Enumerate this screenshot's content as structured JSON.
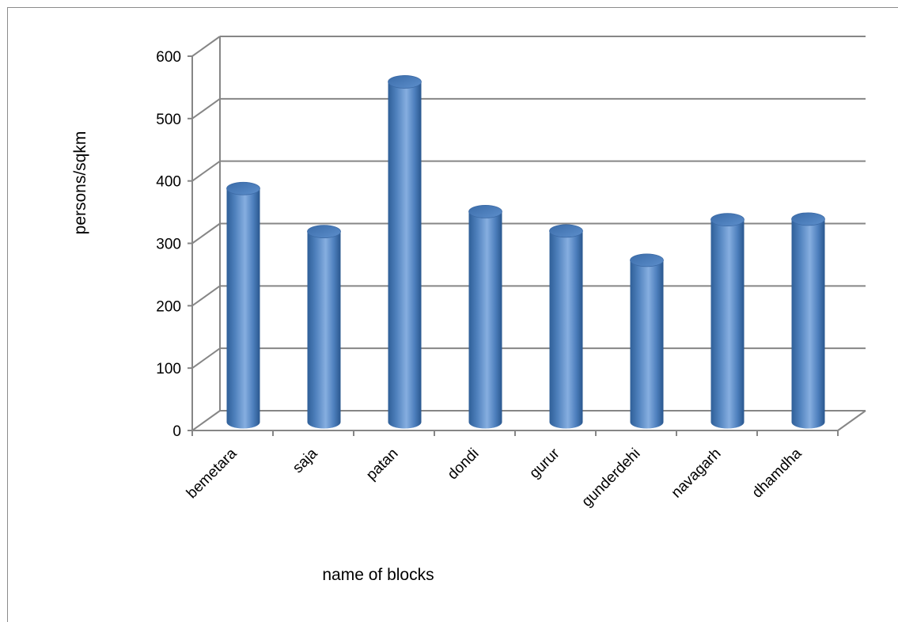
{
  "chart_data": {
    "type": "bar",
    "title": "",
    "xlabel": "name of blocks",
    "ylabel": "persons/sqkm",
    "categories": [
      "bemetara",
      "saja",
      "patan",
      "dondi",
      "gurur",
      "gunderdehi",
      "navagarh",
      "dhamdha"
    ],
    "values": [
      372,
      303,
      543,
      335,
      304,
      257,
      322,
      323
    ],
    "ylim": [
      0,
      600
    ],
    "yticks": [
      "0",
      "100",
      "200",
      "300",
      "400",
      "500",
      "600"
    ],
    "grid": true,
    "legend": "none",
    "style": "3d-cylinder",
    "bar_color": "#4f81bd"
  }
}
